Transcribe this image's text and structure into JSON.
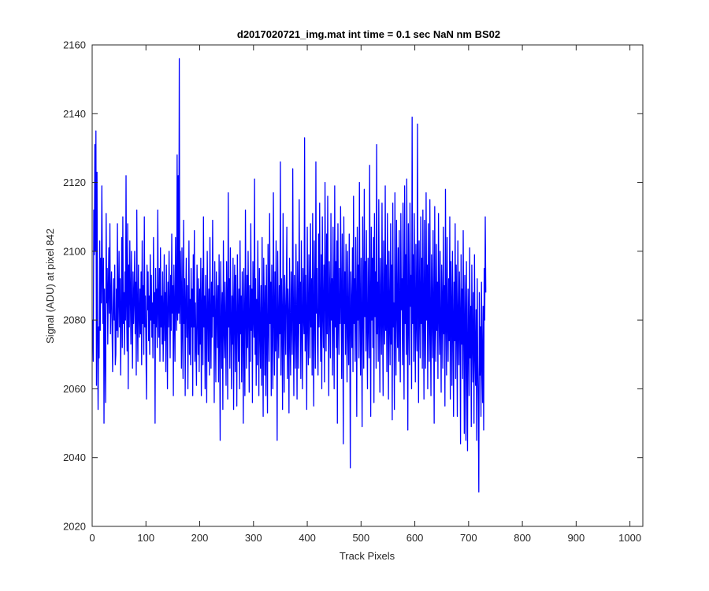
{
  "chart_data": {
    "type": "line",
    "title": "d2017020721_img.mat int time = 0.1 sec  NaN nm BS02",
    "xlabel": "Track Pixels",
    "ylabel": "Signal (ADU) at pixel 842",
    "xlim": [
      0,
      1024
    ],
    "ylim": [
      2020,
      2160
    ],
    "xticks": [
      0,
      100,
      200,
      300,
      400,
      500,
      600,
      700,
      800,
      900,
      1000
    ],
    "yticks": [
      2020,
      2040,
      2060,
      2080,
      2100,
      2120,
      2140,
      2160
    ],
    "grid": false,
    "legend": "none",
    "line_color": "#0000ff",
    "series": [
      {
        "x_start": 1,
        "x_step": 1,
        "values": [
          2080,
          2068,
          2112,
          2099,
          2131,
          2100,
          2135,
          2061,
          2123,
          2077,
          2054,
          2078,
          2069,
          2103,
          2077,
          2098,
          2085,
          2119,
          2092,
          2079,
          2098,
          2050,
          2089,
          2072,
          2056,
          2111,
          2085,
          2095,
          2073,
          2089,
          2101,
          2082,
          2108,
          2076,
          2086,
          2094,
          2077,
          2065,
          2084,
          2092,
          2080,
          2096,
          2067,
          2070,
          2089,
          2077,
          2108,
          2075,
          2086,
          2100,
          2078,
          2092,
          2064,
          2082,
          2104,
          2072,
          2110,
          2079,
          2088,
          2070,
          2094,
          2080,
          2122,
          2084,
          2071,
          2108,
          2060,
          2096,
          2078,
          2103,
          2087,
          2073,
          2100,
          2083,
          2066,
          2094,
          2079,
          2086,
          2100,
          2076,
          2091,
          2064,
          2112,
          2081,
          2068,
          2096,
          2082,
          2075,
          2089,
          2076,
          2094,
          2067,
          2103,
          2079,
          2090,
          2070,
          2110,
          2078,
          2087,
          2072,
          2057,
          2096,
          2083,
          2094,
          2074,
          2087,
          2070,
          2099,
          2080,
          2093,
          2075,
          2085,
          2069,
          2104,
          2079,
          2088,
          2050,
          2095,
          2078,
          2089,
          2072,
          2112,
          2083,
          2075,
          2095,
          2068,
          2101,
          2078,
          2087,
          2073,
          2094,
          2068,
          2080,
          2099,
          2074,
          2088,
          2065,
          2096,
          2082,
          2060,
          2091,
          2078,
          2100,
          2084,
          2069,
          2093,
          2077,
          2105,
          2082,
          2090,
          2058,
          2096,
          2081,
          2068,
          2104,
          2085,
          2077,
          2128,
          2080,
          2122,
          2082,
          2156,
          2079,
          2100,
          2089,
          2066,
          2101,
          2077,
          2063,
          2109,
          2079,
          2092,
          2058,
          2085,
          2098,
          2075,
          2090,
          2060,
          2081,
          2103,
          2070,
          2086,
          2067,
          2095,
          2078,
          2089,
          2058,
          2099,
          2078,
          2106,
          2068,
          2085,
          2072,
          2061,
          2096,
          2083,
          2070,
          2092,
          2065,
          2089,
          2073,
          2098,
          2058,
          2083,
          2095,
          2067,
          2110,
          2078,
          2087,
          2060,
          2093,
          2079,
          2056,
          2100,
          2084,
          2068,
          2089,
          2064,
          2104,
          2080,
          2066,
          2091,
          2075,
          2109,
          2081,
          2087,
          2056,
          2097,
          2078,
          2062,
          2094,
          2084,
          2072,
          2090,
          2062,
          2099,
          2076,
          2045,
          2097,
          2083,
          2066,
          2088,
          2054,
          2103,
          2079,
          2069,
          2091,
          2078,
          2061,
          2097,
          2084,
          2057,
          2117,
          2078,
          2092,
          2066,
          2101,
          2080,
          2060,
          2087,
          2073,
          2098,
          2054,
          2084,
          2096,
          2065,
          2093,
          2078,
          2055,
          2099,
          2082,
          2068,
          2089,
          2060,
          2103,
          2076,
          2087,
          2062,
          2094,
          2080,
          2050,
          2095,
          2078,
          2058,
          2112,
          2082,
          2066,
          2093,
          2072,
          2100,
          2081,
          2059,
          2090,
          2068,
          2108,
          2077,
          2089,
          2056,
          2097,
          2082,
          2075,
          2121,
          2070,
          2092,
          2061,
          2086,
          2067,
          2103,
          2081,
          2058,
          2095,
          2078,
          2066,
          2090,
          2061,
          2104,
          2077,
          2052,
          2098,
          2083,
          2064,
          2090,
          2058,
          2096,
          2075,
          2053,
          2102,
          2081,
          2068,
          2111,
          2079,
          2091,
          2058,
          2096,
          2078,
          2060,
          2117,
          2082,
          2064,
          2094,
          2071,
          2103,
          2077,
          2045,
          2100,
          2080,
          2069,
          2090,
          2076,
          2126,
          2064,
          2092,
          2080,
          2054,
          2111,
          2078,
          2059,
          2093,
          2083,
          2070,
          2088,
          2107,
          2063,
          2089,
          2081,
          2053,
          2098,
          2076,
          2064,
          2094,
          2081,
          2070,
          2124,
          2082,
          2058,
          2093,
          2079,
          2066,
          2102,
          2080,
          2057,
          2097,
          2084,
          2066,
          2115,
          2079,
          2091,
          2063,
          2103,
          2079,
          2060,
          2095,
          2082,
          2076,
          2133,
          2071,
          2093,
          2080,
          2054,
          2107,
          2081,
          2067,
          2099,
          2085,
          2069,
          2108,
          2078,
          2092,
          2064,
          2111,
          2080,
          2055,
          2103,
          2084,
          2066,
          2126,
          2082,
          2095,
          2073,
          2064,
          2105,
          2078,
          2114,
          2082,
          2068,
          2099,
          2060,
          2110,
          2083,
          2072,
          2096,
          2062,
          2120,
          2087,
          2071,
          2105,
          2076,
          2116,
          2082,
          2058,
          2097,
          2086,
          2069,
          2111,
          2080,
          2092,
          2064,
          2107,
          2081,
          2060,
          2119,
          2078,
          2097,
          2072,
          2103,
          2050,
          2108,
          2082,
          2070,
          2095,
          2079,
          2113,
          2085,
          2063,
          2105,
          2083,
          2044,
          2110,
          2079,
          2094,
          2070,
          2102,
          2081,
          2062,
          2100,
          2078,
          2067,
          2105,
          2082,
          2037,
          2094,
          2083,
          2072,
          2101,
          2065,
          2116,
          2079,
          2092,
          2068,
          2104,
          2083,
          2052,
          2107,
          2080,
          2096,
          2069,
          2120,
          2083,
          2064,
          2098,
          2079,
          2049,
          2110,
          2085,
          2066,
          2118,
          2081,
          2097,
          2071,
          2106,
          2078,
          2060,
          2098,
          2080,
          2069,
          2125,
          2083,
          2052,
          2107,
          2080,
          2098,
          2072,
          2104,
          2056,
          2111,
          2081,
          2094,
          2066,
          2131,
          2076,
          2091,
          2068,
          2115,
          2081,
          2059,
          2098,
          2084,
          2070,
          2114,
          2080,
          2058,
          2103,
          2082,
          2073,
          2119,
          2077,
          2096,
          2065,
          2111,
          2083,
          2057,
          2100,
          2081,
          2067,
          2108,
          2073,
          2096,
          2051,
          2114,
          2078,
          2085,
          2054,
          2117,
          2080,
          2064,
          2109,
          2083,
          2072,
          2101,
          2068,
          2106,
          2079,
          2062,
          2111,
          2083,
          2092,
          2067,
          2114,
          2080,
          2057,
          2119,
          2079,
          2099,
          2070,
          2121,
          2082,
          2048,
          2108,
          2081,
          2067,
          2114,
          2084,
          2093,
          2060,
          2139,
          2079,
          2099,
          2068,
          2111,
          2083,
          2062,
          2102,
          2080,
          2071,
          2137,
          2082,
          2056,
          2103,
          2084,
          2069,
          2110,
          2079,
          2098,
          2066,
          2112,
          2083,
          2057,
          2109,
          2081,
          2066,
          2117,
          2080,
          2096,
          2060,
          2108,
          2084,
          2068,
          2115,
          2078,
          2058,
          2099,
          2083,
          2069,
          2106,
          2080,
          2050,
          2113,
          2082,
          2068,
          2102,
          2077,
          2091,
          2063,
          2111,
          2082,
          2070,
          2100,
          2078,
          2059,
          2096,
          2084,
          2066,
          2107,
          2076,
          2090,
          2055,
          2118,
          2081,
          2064,
          2104,
          2079,
          2068,
          2092,
          2074,
          2110,
          2057,
          2097,
          2083,
          2061,
          2100,
          2080,
          2052,
          2091,
          2074,
          2108,
          2063,
          2096,
          2080,
          2052,
          2103,
          2078,
          2067,
          2094,
          2081,
          2044,
          2099,
          2073,
          2089,
          2063,
          2106,
          2077,
          2047,
          2093,
          2081,
          2045,
          2097,
          2072,
          2042,
          2089,
          2076,
          2058,
          2101,
          2069,
          2084,
          2049,
          2096,
          2075,
          2062,
          2088,
          2050,
          2099,
          2071,
          2061,
          2083,
          2045,
          2092,
          2067,
          2055,
          2030,
          2088,
          2064,
          2078,
          2052,
          2091,
          2068,
          2056,
          2084,
          2048,
          2095,
          2080,
          2110,
          2088
        ]
      }
    ]
  }
}
